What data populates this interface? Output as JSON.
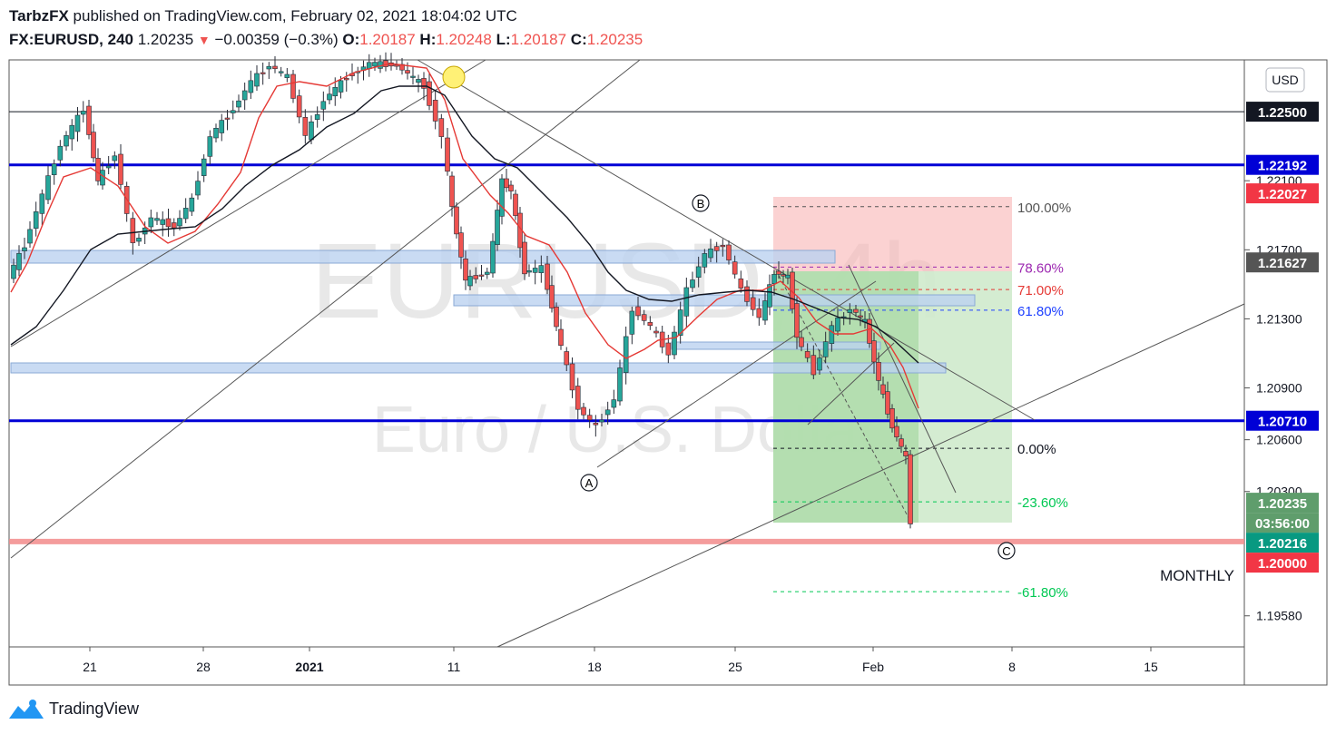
{
  "header": {
    "publisher": "TarbzFX",
    "published_on": "published on TradingView.com, February 02, 2021 18:04:02 UTC",
    "symbol": "FX:EURUSD, 240",
    "last": "1.20235",
    "change": "−0.00359 (−0.3%)",
    "open_label": "O:",
    "open": "1.20187",
    "high_label": "H:",
    "high": "1.20248",
    "low_label": "L:",
    "low": "1.20187",
    "close_label": "C:",
    "close": "1.20235"
  },
  "footer": {
    "brand": "TradingView"
  },
  "colors": {
    "up": "#26a69a",
    "down": "#ef5350",
    "blue_level": "#0000d6",
    "zone": "#bbd2f0"
  },
  "chart_data": {
    "type": "candlestick",
    "currency": "USD",
    "watermark": {
      "symbol": "EURUSD, 4h",
      "description": "Euro / U.S. Dollar"
    },
    "x_ticks": [
      "21",
      "28",
      "2021",
      "11",
      "18",
      "25",
      "Feb",
      "8",
      "15"
    ],
    "y_ticks": [
      "1.22100",
      "1.21700",
      "1.21300",
      "1.20900",
      "1.20600",
      "1.20300",
      "1.19580"
    ],
    "ylim": [
      1.194,
      1.228
    ],
    "price_tags": [
      {
        "value": 1.225,
        "label": "1.22500",
        "bg": "#131722"
      },
      {
        "value": 1.22192,
        "label": "1.22192",
        "bg": "#0000d6"
      },
      {
        "value": 1.22027,
        "label": "1.22027",
        "bg": "#f23645"
      },
      {
        "value": 1.21627,
        "label": "1.21627",
        "bg": "#555555"
      },
      {
        "value": 1.2071,
        "label": "1.20710",
        "bg": "#0000d6"
      },
      {
        "value": 1.20235,
        "label": "1.20235",
        "bg": "#5f9d6c"
      },
      {
        "value": 1.20235,
        "label": "03:56:00",
        "bg": "#5f9d6c"
      },
      {
        "value": 1.20216,
        "label": "1.20216",
        "bg": "#089981"
      },
      {
        "value": 1.2,
        "label": "1.20000",
        "bg": "#f23645"
      }
    ],
    "horizontal_levels": [
      {
        "value": 1.225,
        "color": "#131722",
        "width": 1
      },
      {
        "value": 1.22192,
        "color": "#0000d6",
        "width": 3
      },
      {
        "value": 1.2071,
        "color": "#0000d6",
        "width": 3
      },
      {
        "value": 1.2001,
        "color": "#f28b8b",
        "width": 6
      }
    ],
    "monthly_label": "MONTHLY",
    "fib_levels": [
      {
        "label": "100.00%",
        "value": 1.2195,
        "color": "#555555"
      },
      {
        "label": "78.60%",
        "value": 1.216,
        "color": "#9c27b0"
      },
      {
        "label": "71.00%",
        "value": 1.2147,
        "color": "#e53935"
      },
      {
        "label": "61.80%",
        "value": 1.2135,
        "color": "#1e40ff"
      },
      {
        "label": "0.00%",
        "value": 1.2055,
        "color": "#131722"
      },
      {
        "label": "-23.60%",
        "value": 1.2024,
        "color": "#00c853"
      },
      {
        "label": "-61.80%",
        "value": 1.1972,
        "color": "#00c853"
      }
    ],
    "wave_labels": [
      "A",
      "B",
      "C"
    ]
  }
}
